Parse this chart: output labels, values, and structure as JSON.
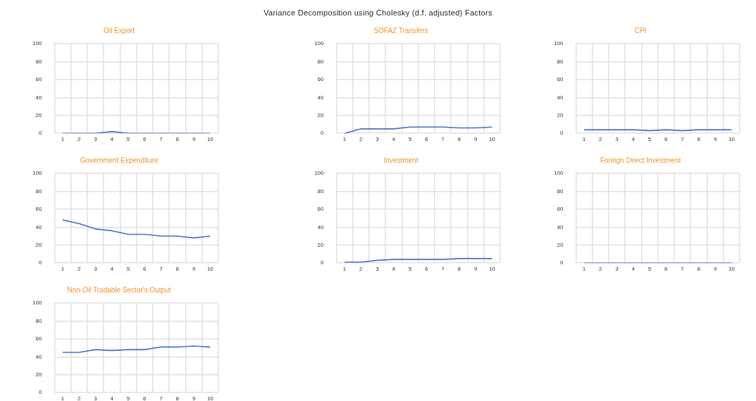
{
  "chart_data": [
    {
      "type": "other",
      "title": "Variance Decomposition using Cholesky (d.f. adjusted) Factors"
    },
    {
      "type": "line",
      "title": "Oil Export",
      "categories": [
        "1",
        "2",
        "3",
        "4",
        "5",
        "6",
        "7",
        "8",
        "9",
        "10"
      ],
      "series": [
        {
          "color": "#4472c4",
          "values": [
            0,
            0,
            0,
            2,
            0,
            0,
            0,
            0,
            0,
            0
          ]
        }
      ],
      "ylim": [
        0,
        100
      ],
      "yticks": [
        0,
        20,
        40,
        60,
        80,
        100
      ],
      "grid": true
    },
    {
      "type": "line",
      "title": "SOFAZ Transfers",
      "categories": [
        "1",
        "2",
        "3",
        "4",
        "5",
        "6",
        "7",
        "8",
        "9",
        "10"
      ],
      "series": [
        {
          "color": "#4472c4",
          "values": [
            0,
            5,
            5,
            5,
            7,
            7,
            7,
            6,
            6,
            7
          ]
        }
      ],
      "ylim": [
        0,
        100
      ],
      "yticks": [
        0,
        20,
        40,
        60,
        80,
        100
      ],
      "grid": true
    },
    {
      "type": "line",
      "title": "CPI",
      "categories": [
        "1",
        "2",
        "3",
        "4",
        "5",
        "6",
        "7",
        "8",
        "9",
        "10"
      ],
      "series": [
        {
          "color": "#4472c4",
          "values": [
            4,
            4,
            4,
            4,
            3,
            4,
            3,
            4,
            4,
            4
          ]
        }
      ],
      "ylim": [
        0,
        100
      ],
      "yticks": [
        0,
        20,
        40,
        60,
        80,
        100
      ],
      "grid": true
    },
    {
      "type": "line",
      "title": "Government Expenditure",
      "categories": [
        "1",
        "2",
        "3",
        "4",
        "5",
        "6",
        "7",
        "8",
        "9",
        "10"
      ],
      "series": [
        {
          "color": "#4472c4",
          "values": [
            48,
            44,
            38,
            36,
            32,
            32,
            30,
            30,
            28,
            30
          ]
        }
      ],
      "ylim": [
        0,
        100
      ],
      "yticks": [
        0,
        20,
        40,
        60,
        80,
        100
      ],
      "grid": true
    },
    {
      "type": "line",
      "title": "Investment",
      "categories": [
        "1",
        "2",
        "3",
        "4",
        "5",
        "6",
        "7",
        "8",
        "9",
        "10"
      ],
      "series": [
        {
          "color": "#4472c4",
          "values": [
            1,
            1,
            3,
            4,
            4,
            4,
            4,
            5,
            5,
            5
          ]
        }
      ],
      "ylim": [
        0,
        100
      ],
      "yticks": [
        0,
        20,
        40,
        60,
        80,
        100
      ],
      "grid": true
    },
    {
      "type": "line",
      "title": "Foreign Direct Investment",
      "categories": [
        "1",
        "2",
        "3",
        "4",
        "5",
        "6",
        "7",
        "8",
        "9",
        "10"
      ],
      "series": [
        {
          "color": "#4472c4",
          "values": [
            0,
            0,
            0,
            0,
            0,
            0,
            0,
            0,
            0,
            0
          ]
        }
      ],
      "ylim": [
        0,
        100
      ],
      "yticks": [
        0,
        20,
        40,
        60,
        80,
        100
      ],
      "grid": true
    },
    {
      "type": "line",
      "title": "Non-Oil Tradable Sector's Output",
      "categories": [
        "1",
        "2",
        "3",
        "4",
        "5",
        "6",
        "7",
        "8",
        "9",
        "10"
      ],
      "series": [
        {
          "color": "#4472c4",
          "values": [
            45,
            45,
            48,
            47,
            48,
            48,
            51,
            51,
            52,
            51
          ]
        }
      ],
      "ylim": [
        0,
        100
      ],
      "yticks": [
        0,
        20,
        40,
        60,
        80,
        100
      ],
      "grid": true
    }
  ]
}
